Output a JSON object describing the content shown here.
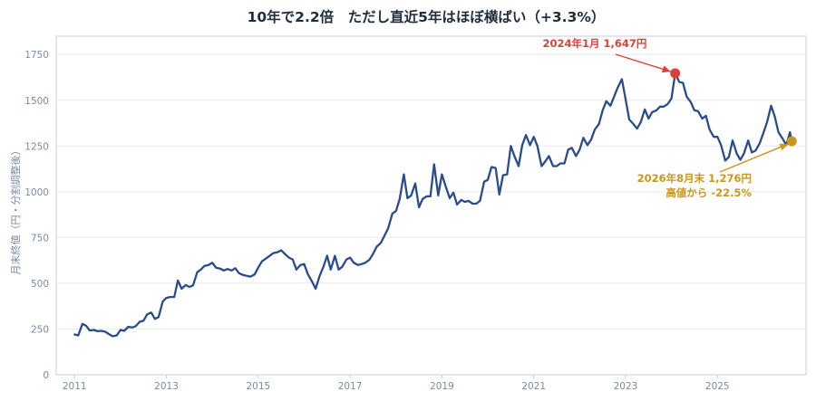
{
  "chart_data": {
    "type": "line",
    "title": "10年で2.2倍　ただし直近5年はほぼ横ばい（+3.3%）",
    "xlabel": "",
    "ylabel": "月末終値（円・分割調整後）",
    "x_ticks": [
      "2011",
      "2013",
      "2015",
      "2017",
      "2019",
      "2021",
      "2023",
      "2025"
    ],
    "y_ticks": [
      0,
      250,
      500,
      750,
      1000,
      1250,
      1500,
      1750
    ],
    "xlim": [
      2010.6,
      2026.93
    ],
    "ylim": [
      0,
      1850
    ],
    "grid": true,
    "colors": {
      "line": "#2b4c8c",
      "peak": "#d9423b",
      "latest": "#c9971a",
      "grid": "#e6e9ee",
      "axis": "#c7cfdb"
    },
    "series": [
      {
        "values": [
          [
            2011.0,
            220
          ],
          [
            2011.08,
            215
          ],
          [
            2011.17,
            278
          ],
          [
            2011.25,
            268
          ],
          [
            2011.33,
            242
          ],
          [
            2011.42,
            245
          ],
          [
            2011.5,
            238
          ],
          [
            2011.58,
            240
          ],
          [
            2011.67,
            235
          ],
          [
            2011.75,
            222
          ],
          [
            2011.83,
            210
          ],
          [
            2011.92,
            215
          ],
          [
            2012.0,
            245
          ],
          [
            2012.08,
            240
          ],
          [
            2012.17,
            262
          ],
          [
            2012.25,
            258
          ],
          [
            2012.33,
            265
          ],
          [
            2012.42,
            290
          ],
          [
            2012.5,
            295
          ],
          [
            2012.58,
            330
          ],
          [
            2012.67,
            340
          ],
          [
            2012.75,
            305
          ],
          [
            2012.83,
            315
          ],
          [
            2012.92,
            400
          ],
          [
            2013.0,
            420
          ],
          [
            2013.08,
            425
          ],
          [
            2013.17,
            425
          ],
          [
            2013.25,
            515
          ],
          [
            2013.33,
            470
          ],
          [
            2013.42,
            490
          ],
          [
            2013.5,
            480
          ],
          [
            2013.58,
            488
          ],
          [
            2013.67,
            560
          ],
          [
            2013.75,
            575
          ],
          [
            2013.83,
            595
          ],
          [
            2013.92,
            600
          ],
          [
            2014.0,
            612
          ],
          [
            2014.08,
            585
          ],
          [
            2014.17,
            580
          ],
          [
            2014.25,
            570
          ],
          [
            2014.33,
            578
          ],
          [
            2014.42,
            570
          ],
          [
            2014.5,
            582
          ],
          [
            2014.58,
            555
          ],
          [
            2014.67,
            545
          ],
          [
            2014.75,
            540
          ],
          [
            2014.83,
            536
          ],
          [
            2014.92,
            548
          ],
          [
            2015.0,
            585
          ],
          [
            2015.08,
            620
          ],
          [
            2015.17,
            635
          ],
          [
            2015.25,
            650
          ],
          [
            2015.33,
            665
          ],
          [
            2015.42,
            670
          ],
          [
            2015.5,
            680
          ],
          [
            2015.58,
            660
          ],
          [
            2015.67,
            640
          ],
          [
            2015.75,
            630
          ],
          [
            2015.83,
            575
          ],
          [
            2015.92,
            600
          ],
          [
            2016.0,
            605
          ],
          [
            2016.08,
            550
          ],
          [
            2016.17,
            510
          ],
          [
            2016.25,
            470
          ],
          [
            2016.33,
            535
          ],
          [
            2016.42,
            590
          ],
          [
            2016.5,
            650
          ],
          [
            2016.58,
            575
          ],
          [
            2016.67,
            650
          ],
          [
            2016.75,
            575
          ],
          [
            2016.83,
            590
          ],
          [
            2016.92,
            630
          ],
          [
            2017.0,
            640
          ],
          [
            2017.08,
            612
          ],
          [
            2017.17,
            600
          ],
          [
            2017.25,
            605
          ],
          [
            2017.33,
            612
          ],
          [
            2017.42,
            628
          ],
          [
            2017.5,
            660
          ],
          [
            2017.58,
            700
          ],
          [
            2017.67,
            720
          ],
          [
            2017.75,
            760
          ],
          [
            2017.83,
            800
          ],
          [
            2017.92,
            880
          ],
          [
            2018.0,
            895
          ],
          [
            2018.08,
            960
          ],
          [
            2018.17,
            1095
          ],
          [
            2018.25,
            965
          ],
          [
            2018.33,
            980
          ],
          [
            2018.42,
            1045
          ],
          [
            2018.5,
            915
          ],
          [
            2018.58,
            960
          ],
          [
            2018.67,
            975
          ],
          [
            2018.75,
            975
          ],
          [
            2018.83,
            1150
          ],
          [
            2018.92,
            980
          ],
          [
            2019.0,
            1095
          ],
          [
            2019.08,
            1030
          ],
          [
            2019.17,
            965
          ],
          [
            2019.25,
            995
          ],
          [
            2019.33,
            930
          ],
          [
            2019.42,
            955
          ],
          [
            2019.5,
            945
          ],
          [
            2019.58,
            950
          ],
          [
            2019.67,
            935
          ],
          [
            2019.75,
            935
          ],
          [
            2019.83,
            950
          ],
          [
            2019.92,
            1055
          ],
          [
            2020.0,
            1065
          ],
          [
            2020.08,
            1135
          ],
          [
            2020.17,
            1130
          ],
          [
            2020.25,
            985
          ],
          [
            2020.33,
            1090
          ],
          [
            2020.42,
            1095
          ],
          [
            2020.5,
            1250
          ],
          [
            2020.58,
            1195
          ],
          [
            2020.67,
            1140
          ],
          [
            2020.75,
            1255
          ],
          [
            2020.83,
            1310
          ],
          [
            2020.92,
            1255
          ],
          [
            2021.0,
            1300
          ],
          [
            2021.08,
            1250
          ],
          [
            2021.17,
            1140
          ],
          [
            2021.25,
            1165
          ],
          [
            2021.33,
            1195
          ],
          [
            2021.42,
            1140
          ],
          [
            2021.5,
            1140
          ],
          [
            2021.58,
            1155
          ],
          [
            2021.67,
            1155
          ],
          [
            2021.75,
            1230
          ],
          [
            2021.83,
            1240
          ],
          [
            2021.92,
            1195
          ],
          [
            2022.0,
            1230
          ],
          [
            2022.08,
            1295
          ],
          [
            2022.17,
            1255
          ],
          [
            2022.25,
            1285
          ],
          [
            2022.33,
            1340
          ],
          [
            2022.42,
            1370
          ],
          [
            2022.5,
            1445
          ],
          [
            2022.58,
            1495
          ],
          [
            2022.67,
            1470
          ],
          [
            2022.75,
            1520
          ],
          [
            2022.83,
            1570
          ],
          [
            2022.92,
            1615
          ],
          [
            2023.0,
            1505
          ],
          [
            2023.08,
            1395
          ],
          [
            2023.17,
            1370
          ],
          [
            2023.25,
            1345
          ],
          [
            2023.33,
            1380
          ],
          [
            2023.42,
            1450
          ],
          [
            2023.5,
            1400
          ],
          [
            2023.58,
            1435
          ],
          [
            2023.67,
            1445
          ],
          [
            2023.75,
            1465
          ],
          [
            2023.83,
            1465
          ],
          [
            2023.92,
            1480
          ],
          [
            2024.0,
            1510
          ],
          [
            2024.08,
            1647
          ],
          [
            2024.17,
            1600
          ],
          [
            2024.25,
            1595
          ],
          [
            2024.33,
            1520
          ],
          [
            2024.42,
            1490
          ],
          [
            2024.5,
            1445
          ],
          [
            2024.58,
            1440
          ],
          [
            2024.67,
            1400
          ],
          [
            2024.75,
            1415
          ],
          [
            2024.83,
            1340
          ],
          [
            2024.92,
            1300
          ],
          [
            2025.0,
            1300
          ],
          [
            2025.08,
            1255
          ],
          [
            2025.17,
            1170
          ],
          [
            2025.25,
            1190
          ],
          [
            2025.33,
            1280
          ],
          [
            2025.42,
            1210
          ],
          [
            2025.5,
            1175
          ],
          [
            2025.58,
            1210
          ],
          [
            2025.67,
            1280
          ],
          [
            2025.75,
            1215
          ],
          [
            2025.83,
            1225
          ],
          [
            2025.92,
            1265
          ],
          [
            2026.0,
            1320
          ],
          [
            2026.08,
            1380
          ],
          [
            2026.17,
            1470
          ],
          [
            2026.25,
            1410
          ],
          [
            2026.33,
            1325
          ],
          [
            2026.42,
            1290
          ],
          [
            2026.5,
            1255
          ],
          [
            2026.58,
            1325
          ],
          [
            2026.62,
            1276
          ]
        ]
      }
    ],
    "points": [
      {
        "id": "peak",
        "x": 2024.08,
        "y": 1647
      },
      {
        "id": "latest",
        "x": 2026.62,
        "y": 1276
      }
    ],
    "annotations": {
      "peak": {
        "text": "2024年1月 1,647円"
      },
      "latest": {
        "line1": "2026年8月末 1,276円",
        "line2": "高値から -22.5%"
      }
    }
  }
}
